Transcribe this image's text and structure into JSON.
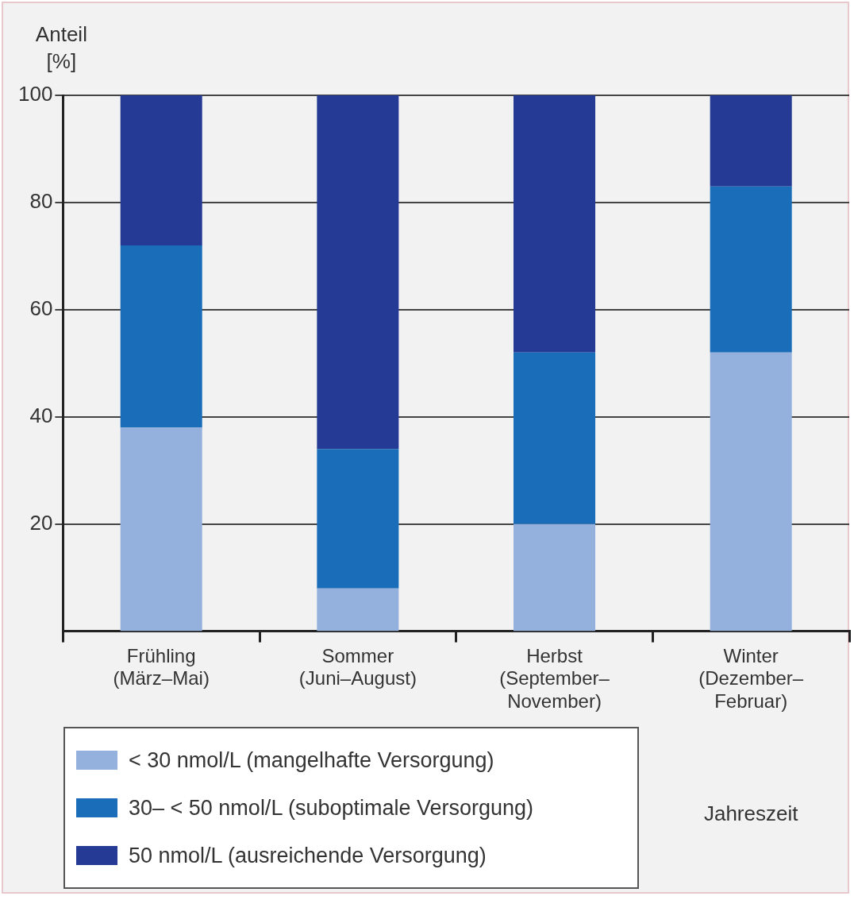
{
  "chart_data": {
    "type": "bar",
    "stacked": true,
    "ylabel": "Anteil\n[%]",
    "xlabel": "Jahreszeit",
    "categories": [
      "Frühling\n(März–Mai)",
      "Sommer\n(Juni–August)",
      "Herbst\n(September–\nNovember)",
      "Winter\n(Dezember–\nFebruar)"
    ],
    "series": [
      {
        "name": "< 30 nmol/L (mangelhafte Versorgung)",
        "color": "#94b0dc",
        "values": [
          38,
          8,
          20,
          52
        ]
      },
      {
        "name": "30– < 50 nmol/L (suboptimale Versorgung)",
        "color": "#1a6db8",
        "values": [
          34,
          26,
          32,
          31
        ]
      },
      {
        "name": "50 nmol/L (ausreichende Versorgung)",
        "color": "#253a94",
        "values": [
          28,
          66,
          48,
          17
        ]
      }
    ],
    "ylim": [
      0,
      100
    ],
    "yticks": [
      20,
      40,
      60,
      80,
      100
    ],
    "grid": "y",
    "legend": "bottom left"
  }
}
